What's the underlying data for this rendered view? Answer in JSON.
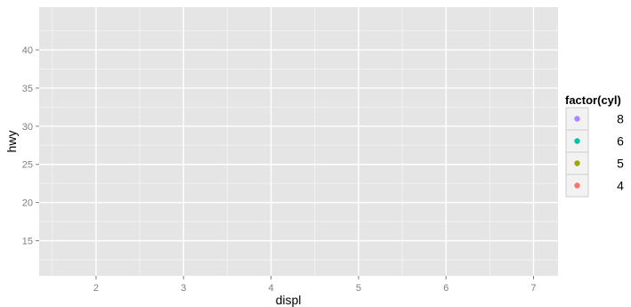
{
  "chart_data": {
    "type": "scatter",
    "title": "",
    "xlabel": "displ",
    "ylabel": "hwy",
    "xlim": [
      1.35,
      7.28
    ],
    "ylim": [
      10.4,
      45.6
    ],
    "x_ticks": [
      2,
      3,
      4,
      5,
      6,
      7
    ],
    "y_ticks": [
      15,
      20,
      25,
      30,
      35,
      40
    ],
    "x_tick_labels": [
      "2",
      "3",
      "4",
      "5",
      "6",
      "7"
    ],
    "y_tick_labels": [
      "15",
      "20",
      "25",
      "30",
      "35",
      "40"
    ],
    "grid": true,
    "legend": {
      "title": "factor(cyl)",
      "placement": "right",
      "entries": [
        {
          "label": "8",
          "color": "#A58AFF"
        },
        {
          "label": "6",
          "color": "#00C1A9"
        },
        {
          "label": "5",
          "color": "#A3A500"
        },
        {
          "label": "4",
          "color": "#F8766D"
        }
      ]
    },
    "series": [],
    "colors": {
      "panel": "#E5E5E5",
      "grid_major": "#FFFFFF",
      "grid_minor": "#F2F2F2",
      "tick_text": "#7F7F7F",
      "key_border": "#CCCCCC"
    }
  }
}
